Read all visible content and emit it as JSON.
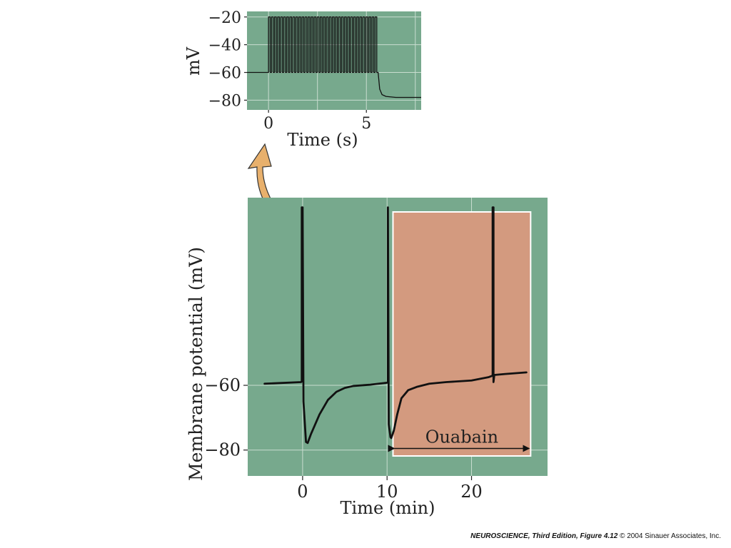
{
  "chart_data": [
    {
      "type": "line",
      "title": "",
      "xlabel": "Time (s)",
      "ylabel": "mV",
      "xlim": [
        -1.1,
        7.8
      ],
      "ylim": [
        -87,
        -16
      ],
      "x_ticks": [
        0,
        5
      ],
      "y_ticks": [
        -20,
        -40,
        -60,
        -80
      ],
      "grid": true,
      "background": "#77a98d",
      "series": [
        {
          "x": [
            -1.1,
            0,
            0,
            0.27,
            0.27,
            0.47,
            0.47,
            5.6,
            5.6,
            5.75,
            6.0,
            6.5,
            7.8
          ],
          "y": [
            -60,
            -60,
            -20,
            -20,
            -60,
            -60,
            -20,
            -20,
            -60,
            -75,
            -77,
            -78,
            -78
          ],
          "spike_train": {
            "start": 0,
            "end": 5.6,
            "count": 36,
            "baseline": -60,
            "peak": -20
          }
        }
      ]
    },
    {
      "type": "line",
      "title": "",
      "xlabel": "Time (min)",
      "ylabel": "Membrane potential (mV)",
      "xlim": [
        -6.5,
        29
      ],
      "ylim": [
        -88,
        -2
      ],
      "x_ticks": [
        0,
        10,
        20
      ],
      "y_ticks": [
        -60,
        -80
      ],
      "grid": true,
      "background": "#77a98d",
      "region": {
        "label": "Ouabain",
        "x_start": 10.7,
        "x_end": 27,
        "color": "#d39a7f"
      },
      "series": [
        {
          "x": [
            -4.5,
            -0.2,
            -0.1,
            -0.1,
            0,
            0.1,
            0.4,
            0.6,
            1,
            1.5,
            2,
            3,
            4,
            5,
            6,
            8,
            9,
            10,
            10.1,
            10.1,
            10.2,
            10.4,
            10.5,
            10.8,
            11.2,
            11.7,
            12.5,
            13.5,
            15,
            17,
            20,
            22,
            22.5,
            22.5,
            22.6,
            22.6,
            22.7,
            24,
            26.5
          ],
          "y": [
            -59.5,
            -59,
            -58.8,
            -5,
            -5,
            -65,
            -77.5,
            -77.8,
            -75,
            -72,
            -69,
            -64.5,
            -62,
            -60.8,
            -60.2,
            -59.8,
            -59.5,
            -59.2,
            -59,
            -5,
            -72,
            -76,
            -76.3,
            -74,
            -69,
            -64,
            -61.5,
            -60.5,
            -59.5,
            -59,
            -58.5,
            -57.5,
            -57,
            -5,
            -5,
            -59,
            -56.8,
            -56.5,
            -56
          ]
        }
      ]
    }
  ],
  "callout": {
    "arrow_color": "#e8b06c"
  },
  "credit": {
    "source": "NEUROSCIENCE, Third Edition, Figure 4.12",
    "copyright": "© 2004 Sinauer Associates, Inc."
  }
}
